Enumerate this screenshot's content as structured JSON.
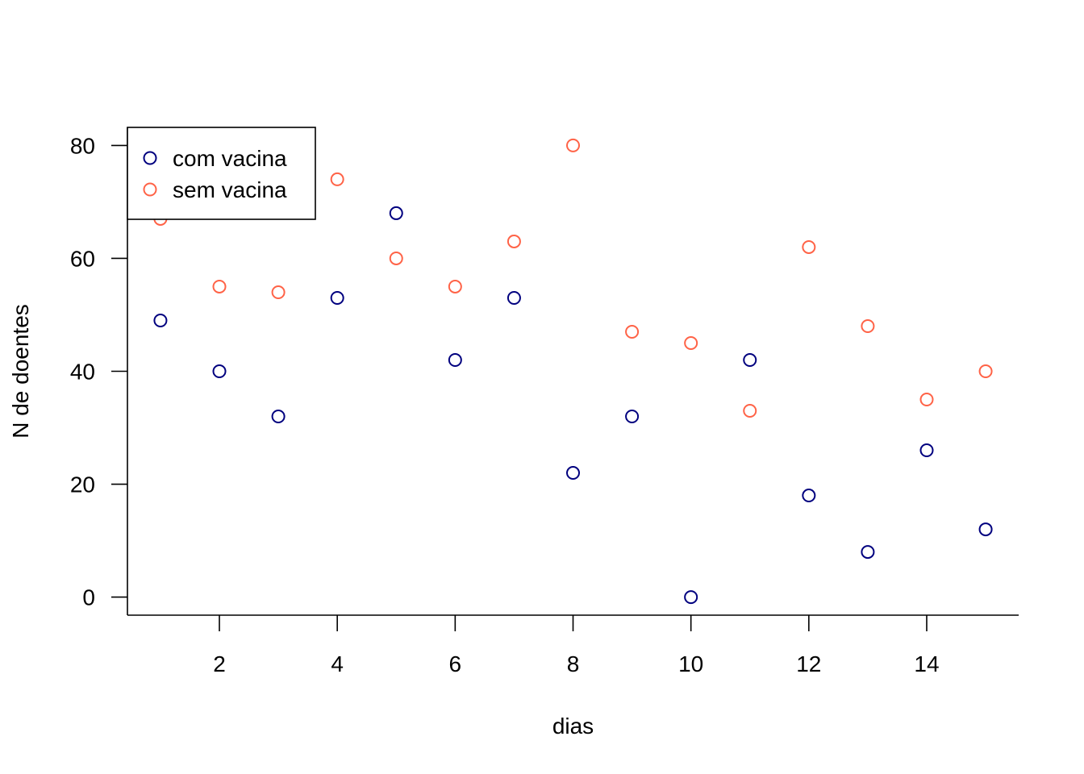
{
  "chart_data": {
    "type": "scatter",
    "title": "",
    "xlabel": "dias",
    "ylabel": "N de doentes",
    "x": [
      1,
      2,
      3,
      4,
      5,
      6,
      7,
      8,
      9,
      10,
      11,
      12,
      13,
      14,
      15
    ],
    "xlim": [
      0.44,
      15.56
    ],
    "ylim": [
      -3.2,
      83.2
    ],
    "x_ticks": [
      2,
      4,
      6,
      8,
      10,
      12,
      14
    ],
    "y_ticks": [
      0,
      20,
      40,
      60,
      80
    ],
    "grid": false,
    "legend_position": "top-left",
    "series": [
      {
        "name": "com vacina",
        "color": "#00007F",
        "marker": "open-circle",
        "values": [
          49,
          40,
          32,
          53,
          68,
          42,
          53,
          22,
          32,
          0,
          42,
          18,
          8,
          26,
          12
        ]
      },
      {
        "name": "sem vacina",
        "color": "#FF6347",
        "marker": "open-circle",
        "values": [
          67,
          55,
          54,
          74,
          60,
          55,
          63,
          80,
          47,
          45,
          33,
          62,
          48,
          35,
          40
        ]
      }
    ]
  }
}
